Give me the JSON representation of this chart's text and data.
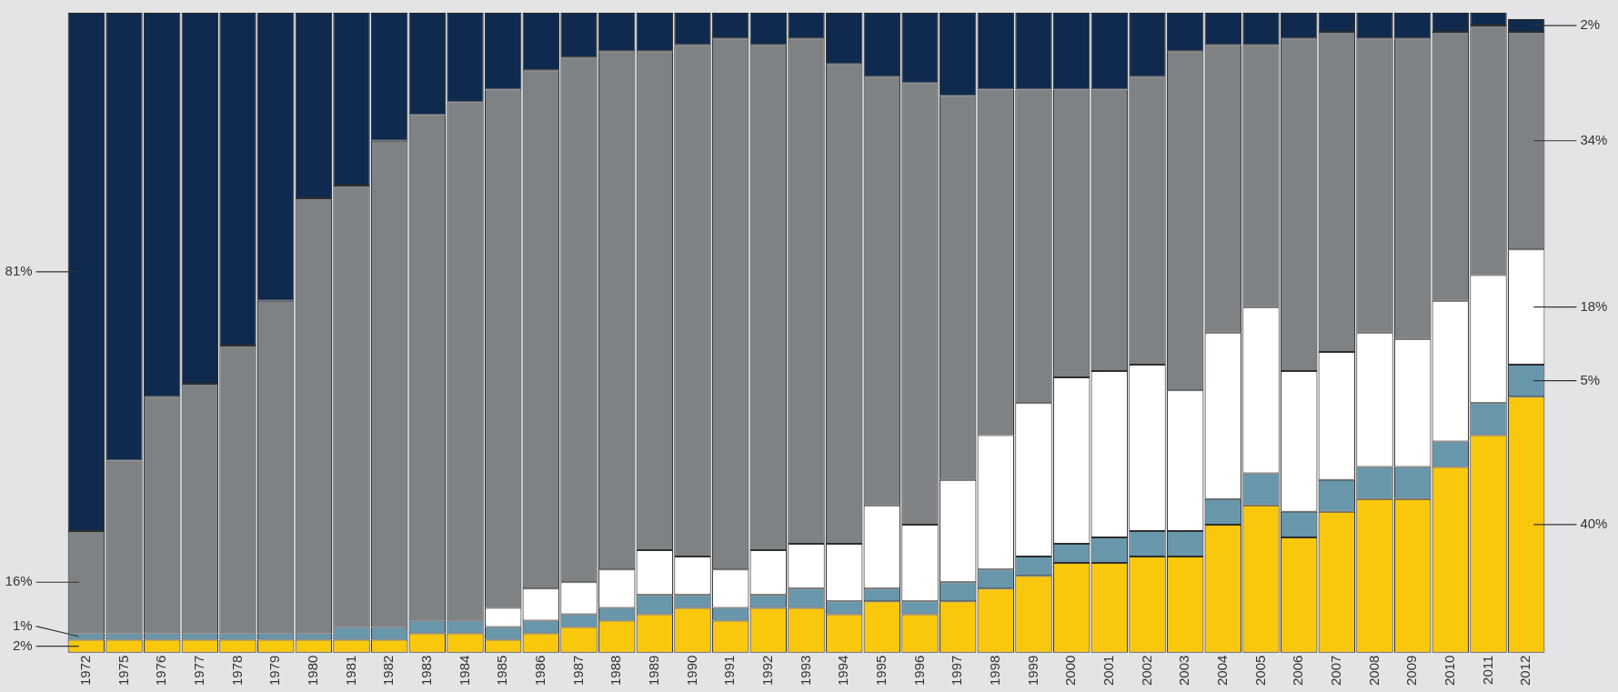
{
  "chart_data": {
    "type": "bar",
    "stacked": true,
    "ylim": [
      0,
      100
    ],
    "tick_labels": "x",
    "grid": false,
    "legend": false,
    "categories": [
      "1972",
      "1975",
      "1976",
      "1977",
      "1978",
      "1979",
      "1980",
      "1981",
      "1982",
      "1983",
      "1984",
      "1985",
      "1986",
      "1987",
      "1988",
      "1989",
      "1990",
      "1991",
      "1992",
      "1993",
      "1994",
      "1995",
      "1996",
      "1997",
      "1998",
      "1999",
      "2000",
      "2001",
      "2002",
      "2003",
      "2004",
      "2005",
      "2006",
      "2007",
      "2008",
      "2009",
      "2010",
      "2011",
      "2012"
    ],
    "series": [
      {
        "color": "#f9c70c",
        "values": [
          2,
          2,
          2,
          2,
          2,
          2,
          2,
          2,
          2,
          3,
          3,
          2,
          3,
          4,
          5,
          6,
          7,
          5,
          7,
          7,
          6,
          8,
          6,
          8,
          10,
          12,
          14,
          14,
          15,
          15,
          20,
          23,
          18,
          22,
          24,
          24,
          29,
          34,
          40
        ],
        "value_labels": [
          "2%",
          null,
          null,
          null,
          null,
          null,
          null,
          null,
          null,
          null,
          null,
          null,
          null,
          null,
          null,
          null,
          null,
          null,
          null,
          null,
          null,
          null,
          null,
          null,
          null,
          null,
          null,
          null,
          null,
          null,
          null,
          null,
          null,
          null,
          null,
          null,
          null,
          null,
          "40%"
        ]
      },
      {
        "color": "#6897ab",
        "values": [
          1,
          1,
          1,
          1,
          1,
          1,
          1,
          2,
          2,
          2,
          2,
          2,
          2,
          2,
          2,
          3,
          2,
          2,
          2,
          3,
          2,
          2,
          2,
          3,
          3,
          3,
          3,
          4,
          4,
          4,
          4,
          5,
          4,
          5,
          5,
          5,
          4,
          5,
          5
        ],
        "value_labels": [
          "1%",
          null,
          null,
          null,
          null,
          null,
          null,
          null,
          null,
          null,
          null,
          null,
          null,
          null,
          null,
          null,
          null,
          null,
          null,
          null,
          null,
          null,
          null,
          null,
          null,
          null,
          null,
          null,
          null,
          null,
          null,
          null,
          null,
          null,
          null,
          null,
          null,
          null,
          "5%"
        ]
      },
      {
        "color": "#ffffff",
        "values": [
          0,
          0,
          0,
          0,
          0,
          0,
          0,
          0,
          0,
          0,
          0,
          3,
          5,
          5,
          6,
          7,
          6,
          6,
          7,
          7,
          9,
          13,
          12,
          16,
          21,
          24,
          26,
          26,
          26,
          22,
          26,
          26,
          22,
          20,
          21,
          20,
          22,
          20,
          18
        ],
        "value_labels": [
          null,
          null,
          null,
          null,
          null,
          null,
          null,
          null,
          null,
          null,
          null,
          null,
          null,
          null,
          null,
          null,
          null,
          null,
          null,
          null,
          null,
          null,
          null,
          null,
          null,
          null,
          null,
          null,
          null,
          null,
          null,
          null,
          null,
          null,
          null,
          null,
          null,
          null,
          "18%"
        ]
      },
      {
        "color": "#7f8285",
        "values": [
          16,
          27,
          37,
          39,
          45,
          52,
          68,
          69,
          76,
          79,
          81,
          81,
          81,
          82,
          81,
          78,
          80,
          83,
          79,
          79,
          75,
          67,
          69,
          60,
          54,
          49,
          45,
          44,
          45,
          53,
          45,
          41,
          52,
          50,
          46,
          47,
          42,
          39,
          34
        ],
        "value_labels": [
          "16%",
          null,
          null,
          null,
          null,
          null,
          null,
          null,
          null,
          null,
          null,
          null,
          null,
          null,
          null,
          null,
          null,
          null,
          null,
          null,
          null,
          null,
          null,
          null,
          null,
          null,
          null,
          null,
          null,
          null,
          null,
          null,
          null,
          null,
          null,
          null,
          null,
          null,
          "34%"
        ]
      },
      {
        "color": "#0f2a4e",
        "values": [
          81,
          70,
          60,
          58,
          52,
          45,
          29,
          27,
          20,
          16,
          14,
          12,
          9,
          7,
          6,
          6,
          5,
          4,
          5,
          4,
          8,
          10,
          11,
          13,
          12,
          12,
          12,
          12,
          10,
          6,
          5,
          5,
          4,
          3,
          4,
          4,
          3,
          2,
          2
        ],
        "value_labels": [
          "81%",
          null,
          null,
          null,
          null,
          null,
          null,
          null,
          null,
          null,
          null,
          null,
          null,
          null,
          null,
          null,
          null,
          null,
          null,
          null,
          null,
          null,
          null,
          null,
          null,
          null,
          null,
          null,
          null,
          null,
          null,
          null,
          null,
          null,
          null,
          null,
          null,
          null,
          "2%"
        ]
      }
    ]
  }
}
